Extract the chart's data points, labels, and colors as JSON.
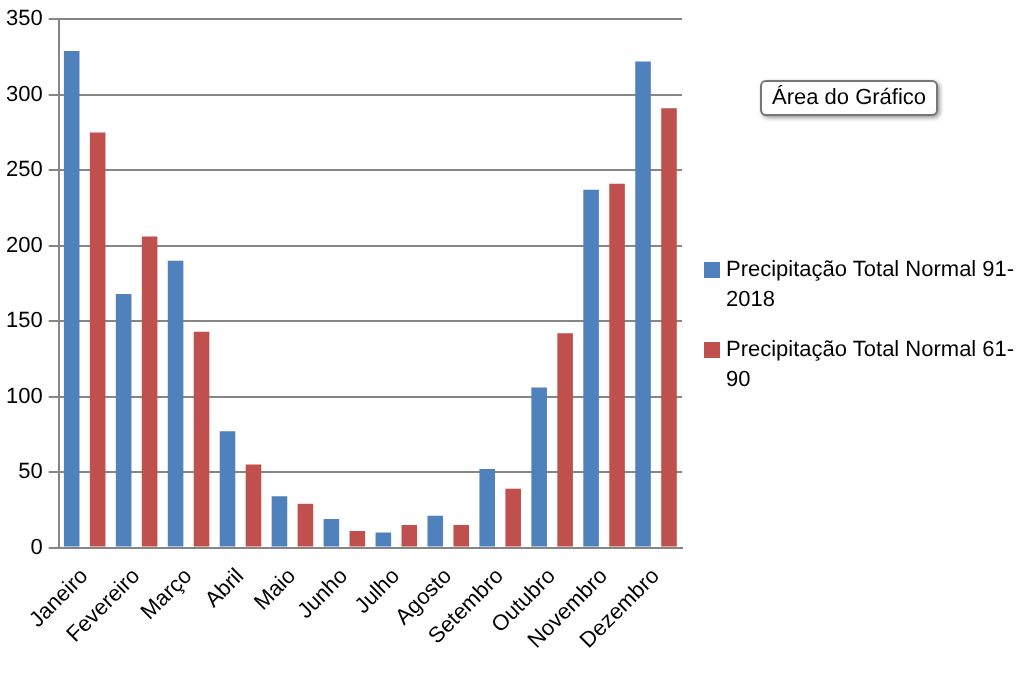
{
  "chart_data": {
    "type": "bar",
    "categories": [
      "Janeiro",
      "Fevereiro",
      "Março",
      "Abril",
      "Maio",
      "Junho",
      "Julho",
      "Agosto",
      "Setembro",
      "Outubro",
      "Novembro",
      "Dezembro"
    ],
    "series": [
      {
        "name": "Precipitação Total Normal 91-2018",
        "color": "#4f81bd",
        "values": [
          329,
          168,
          190,
          77,
          34,
          19,
          10,
          21,
          52,
          106,
          237,
          322
        ]
      },
      {
        "name": "Precipitação Total Normal 61-90",
        "color": "#c0504d",
        "values": [
          275,
          206,
          143,
          55,
          29,
          11,
          15,
          15,
          39,
          142,
          241,
          291
        ]
      }
    ],
    "ylim": [
      0,
      350
    ],
    "yticks": [
      0,
      50,
      100,
      150,
      200,
      250,
      300,
      350
    ],
    "grid": "y",
    "legend": "right",
    "annotations": [
      "Área do Gráfico"
    ]
  }
}
